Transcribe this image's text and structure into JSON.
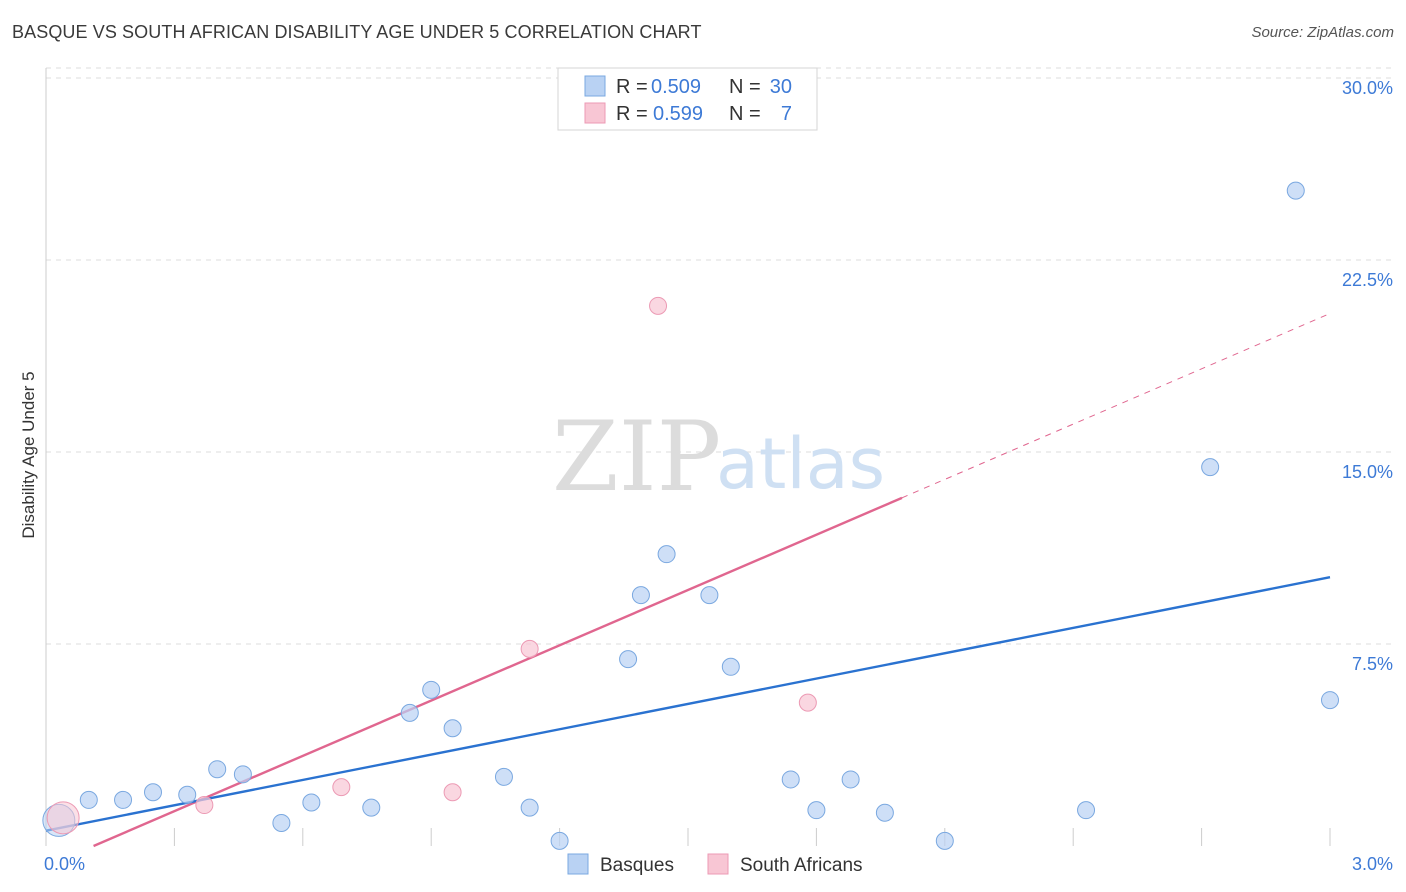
{
  "title": "BASQUE VS SOUTH AFRICAN DISABILITY AGE UNDER 5 CORRELATION CHART",
  "source": "Source: ZipAtlas.com",
  "watermark": {
    "zip": "ZIP",
    "atlas": "atlas"
  },
  "colors": {
    "basques_fill": "#b9d2f3",
    "basques_stroke": "#7aa8e0",
    "basques_line": "#2a72d0",
    "sa_fill": "#f8c6d4",
    "sa_stroke": "#ec9ab4",
    "sa_line": "#e0668f",
    "grid": "#dddddd",
    "axis_text": "#3d7ad6"
  },
  "legend": {
    "rows": [
      {
        "r_label": "R =",
        "r_value": "0.509",
        "n_label": "N =",
        "n_value": "30"
      },
      {
        "r_label": "R =",
        "r_value": "0.599",
        "n_label": "N =",
        "n_value": "7"
      }
    ]
  },
  "chart_data": {
    "type": "scatter",
    "title": "BASQUE VS SOUTH AFRICAN DISABILITY AGE UNDER 5 CORRELATION CHART",
    "xlabel": "",
    "ylabel": "Disability Age Under 5",
    "xlim": [
      0,
      3.0
    ],
    "ylim": [
      0,
      30.0
    ],
    "x_ticks": [
      {
        "value": 0,
        "label": "0.0%"
      },
      {
        "value": 3.0,
        "label": "3.0%"
      }
    ],
    "y_ticks": [
      {
        "value": 7.5,
        "label": "7.5%"
      },
      {
        "value": 15.0,
        "label": "15.0%"
      },
      {
        "value": 22.5,
        "label": "22.5%"
      },
      {
        "value": 30.0,
        "label": "30.0%"
      }
    ],
    "grid": true,
    "series": [
      {
        "name": "Basques",
        "points": [
          {
            "x": 0.03,
            "y": 1.0,
            "big": true
          },
          {
            "x": 0.1,
            "y": 1.8
          },
          {
            "x": 0.18,
            "y": 1.8
          },
          {
            "x": 0.25,
            "y": 2.1
          },
          {
            "x": 0.33,
            "y": 2.0
          },
          {
            "x": 0.4,
            "y": 3.0
          },
          {
            "x": 0.46,
            "y": 2.8
          },
          {
            "x": 0.55,
            "y": 0.9
          },
          {
            "x": 0.62,
            "y": 1.7
          },
          {
            "x": 0.76,
            "y": 1.5
          },
          {
            "x": 0.85,
            "y": 5.2
          },
          {
            "x": 0.9,
            "y": 6.1
          },
          {
            "x": 0.95,
            "y": 4.6
          },
          {
            "x": 1.07,
            "y": 2.7
          },
          {
            "x": 1.13,
            "y": 1.5
          },
          {
            "x": 1.2,
            "y": 0.2
          },
          {
            "x": 1.36,
            "y": 7.3
          },
          {
            "x": 1.39,
            "y": 9.8
          },
          {
            "x": 1.45,
            "y": 11.4
          },
          {
            "x": 1.55,
            "y": 9.8
          },
          {
            "x": 1.6,
            "y": 7.0
          },
          {
            "x": 1.74,
            "y": 2.6
          },
          {
            "x": 1.8,
            "y": 1.4
          },
          {
            "x": 1.88,
            "y": 2.6
          },
          {
            "x": 1.96,
            "y": 1.3
          },
          {
            "x": 2.1,
            "y": 0.2
          },
          {
            "x": 2.43,
            "y": 1.4
          },
          {
            "x": 2.72,
            "y": 14.8
          },
          {
            "x": 2.92,
            "y": 25.6
          },
          {
            "x": 3.0,
            "y": 5.7
          }
        ],
        "trendline": {
          "x0": 0,
          "y0": 0.6,
          "x1": 3.0,
          "y1": 10.5
        }
      },
      {
        "name": "South Africans",
        "points": [
          {
            "x": 0.04,
            "y": 1.1,
            "big": true
          },
          {
            "x": 0.37,
            "y": 1.6
          },
          {
            "x": 0.69,
            "y": 2.3
          },
          {
            "x": 0.95,
            "y": 2.1
          },
          {
            "x": 1.13,
            "y": 7.7
          },
          {
            "x": 1.43,
            "y": 21.1
          },
          {
            "x": 1.78,
            "y": 5.6
          }
        ],
        "trendline": {
          "x0": 0,
          "y0": -0.8,
          "x1": 2.0,
          "y1": 13.6
        },
        "extension": {
          "x0": 2.0,
          "y0": 13.6,
          "x1": 3.0,
          "y1": 20.8
        }
      }
    ]
  },
  "bottom_legend": [
    {
      "label": "Basques"
    },
    {
      "label": "South Africans"
    }
  ]
}
